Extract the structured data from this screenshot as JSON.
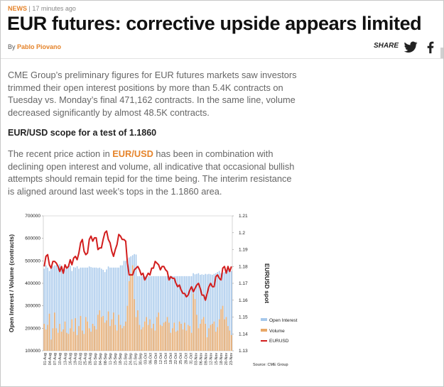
{
  "article": {
    "category": "NEWS",
    "separator": "|",
    "time": "17 minutes ago",
    "headline": "EUR futures: corrective upside appears limited",
    "byline_prefix": "By",
    "author": "Pablo Piovano",
    "share_label": "SHARE",
    "social_icons": [
      "twitter-icon",
      "facebook-icon"
    ],
    "paragraph1": "CME Group’s preliminary figures for EUR futures markets saw investors trimmed their open interest positions by more than 5.4K contracts on Tuesday vs. Monday’s final 471,162 contracts. In the same line, volume decreased significantly by almost 48.5K contracts.",
    "subheading": "EUR/USD scope for a test of 1.1860",
    "paragraph2": {
      "before_link": "The recent price action in ",
      "link_text": "EUR/USD",
      "after_link": " has been in combination with declining open interest and volume, all indicative that occasional bullish attempts should remain tepid for the time being. The interim resistance is aligned around last week’s tops in the 1.1860 area."
    },
    "colors": {
      "accent": "#e5832a",
      "open_interest": "#a6c8eb",
      "volume": "#e8a868",
      "eurusd": "#d21e1e"
    }
  },
  "chart_data": {
    "type": "bar",
    "ylabel": "Open Interest / Volume (contracts)",
    "y2label": "EURUSD spot",
    "source": "Source: CME Group",
    "ylim": [
      100000,
      700000
    ],
    "y2lim": [
      1.13,
      1.21
    ],
    "yticks": [
      "100000",
      "200000",
      "300000",
      "400000",
      "500000",
      "600000",
      "700000"
    ],
    "y2ticks": [
      "1.13",
      "1.14",
      "1.15",
      "1.16",
      "1.17",
      "1.18",
      "1.19",
      "1.2",
      "1.21"
    ],
    "xlabels": [
      "01-Aug",
      "04-Aug",
      "07-Aug",
      "10-Aug",
      "13-Aug",
      "16-Aug",
      "19-Aug",
      "22-Aug",
      "25-Aug",
      "28-Aug",
      "01-Sep",
      "04-Sep",
      "08-Sep",
      "11-Sep",
      "15-Sep",
      "18-Sep",
      "21-Sep",
      "24-Sep",
      "27-Sep",
      "30-Sep",
      "03-Oct",
      "06-Oct",
      "09-Oct",
      "12-Oct",
      "15-Oct",
      "18-Oct",
      "22-Oct",
      "25-Oct",
      "28-Oct",
      "31-Oct",
      "03-Nov",
      "06-Nov",
      "09-Nov",
      "12-Nov",
      "15-Nov",
      "18-Nov",
      "20-Nov",
      "23-Nov"
    ],
    "grid": false,
    "legend_position": "right",
    "series": [
      {
        "name": "Open Interest",
        "type": "bar",
        "axis": "left",
        "values": [
          465000,
          480000,
          470000,
          455000,
          470000,
          475000,
          480000,
          480000,
          480000,
          485000,
          475000,
          460000,
          462000,
          470000,
          480000,
          478000,
          455000,
          472000,
          470000,
          476000,
          465000,
          470000,
          470000,
          470000,
          470000,
          470000,
          475000,
          472000,
          470000,
          470000,
          470000,
          468000,
          470000,
          465000,
          460000,
          450000,
          462000,
          475000,
          470000,
          470000,
          470000,
          470000,
          470000,
          470000,
          480000,
          480000,
          500000,
          500000,
          510000,
          515000,
          520000,
          525000,
          530000,
          528000,
          432000,
          432000,
          432000,
          432000,
          432000,
          432000,
          432000,
          432000,
          432000,
          432000,
          432000,
          432000,
          432000,
          432000,
          432000,
          432000,
          432000,
          432000,
          432000,
          432000,
          432000,
          432000,
          432000,
          432000,
          432000,
          432000,
          432000,
          432000,
          432000,
          432000,
          432000,
          432000,
          445000,
          440000,
          442000,
          445000,
          438000,
          440000,
          438000,
          442000,
          440000,
          442000,
          440000,
          438000,
          442000,
          445000,
          450000,
          455000,
          445000,
          448000,
          450000,
          452000,
          460000,
          455000,
          455000
        ]
      },
      {
        "name": "Volume",
        "type": "bar",
        "axis": "left",
        "values": [
          220000,
          195000,
          215000,
          265000,
          150000,
          200000,
          270000,
          200000,
          180000,
          220000,
          185000,
          195000,
          230000,
          180000,
          175000,
          200000,
          240000,
          185000,
          245000,
          170000,
          210000,
          255000,
          190000,
          175000,
          250000,
          230000,
          200000,
          185000,
          220000,
          210000,
          195000,
          260000,
          280000,
          250000,
          255000,
          225000,
          235000,
          275000,
          210000,
          240000,
          270000,
          215000,
          190000,
          260000,
          215000,
          200000,
          210000,
          230000,
          300000,
          410000,
          445000,
          480000,
          330000,
          250000,
          280000,
          215000,
          195000,
          205000,
          230000,
          250000,
          215000,
          240000,
          200000,
          220000,
          190000,
          250000,
          270000,
          215000,
          210000,
          225000,
          230000,
          250000,
          225000,
          180000,
          200000,
          225000,
          185000,
          190000,
          230000,
          220000,
          195000,
          225000,
          190000,
          215000,
          210000,
          180000,
          355000,
          330000,
          260000,
          200000,
          220000,
          240000,
          250000,
          220000,
          160000,
          200000,
          215000,
          220000,
          230000,
          185000,
          205000,
          240000,
          285000,
          300000,
          240000,
          250000,
          210000,
          190000,
          170000
        ]
      },
      {
        "name": "EURUSD",
        "type": "line",
        "axis": "right",
        "values": [
          1.18,
          1.186,
          1.187,
          1.181,
          1.179,
          1.183,
          1.183,
          1.182,
          1.18,
          1.177,
          1.18,
          1.176,
          1.181,
          1.179,
          1.18,
          1.184,
          1.181,
          1.185,
          1.186,
          1.184,
          1.188,
          1.194,
          1.196,
          1.189,
          1.187,
          1.188,
          1.196,
          1.198,
          1.195,
          1.197,
          1.197,
          1.19,
          1.191,
          1.191,
          1.196,
          1.2,
          1.201,
          1.196,
          1.194,
          1.189,
          1.186,
          1.19,
          1.193,
          1.199,
          1.198,
          1.196,
          1.196,
          1.195,
          1.182,
          1.175,
          1.175,
          1.175,
          1.178,
          1.179,
          1.18,
          1.178,
          1.175,
          1.176,
          1.172,
          1.174,
          1.176,
          1.175,
          1.179,
          1.179,
          1.183,
          1.182,
          1.181,
          1.178,
          1.18,
          1.18,
          1.178,
          1.177,
          1.172,
          1.174,
          1.173,
          1.173,
          1.17,
          1.168,
          1.169,
          1.166,
          1.164,
          1.164,
          1.162,
          1.163,
          1.166,
          1.168,
          1.165,
          1.167,
          1.169,
          1.17,
          1.167,
          1.163,
          1.163,
          1.16,
          1.164,
          1.168,
          1.17,
          1.168,
          1.168,
          1.174,
          1.175,
          1.173,
          1.172,
          1.179,
          1.18,
          1.176,
          1.18,
          1.177,
          1.18
        ]
      }
    ]
  }
}
